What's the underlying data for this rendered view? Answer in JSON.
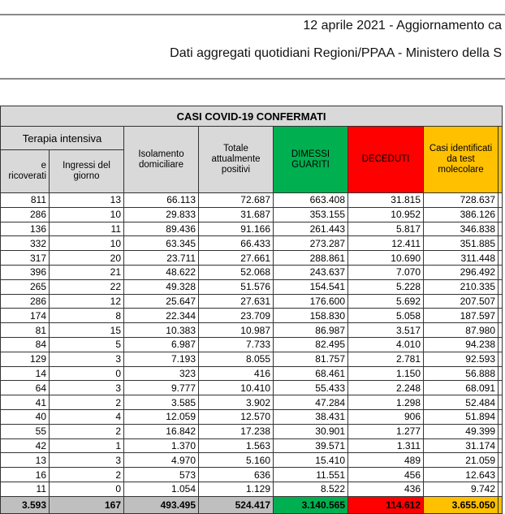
{
  "header": {
    "line1": "12 aprile 2021 - Aggiornamento ca",
    "line2": "Dati aggregati quotidiani Regioni/PPAA - Ministero della S"
  },
  "table": {
    "group_title": "CASI COVID-19 CONFERMATI",
    "sub_group": "Terapia intensiva",
    "columns": [
      "e ricoverati",
      "Ingressi del giorno",
      "Isolamento domiciliare",
      "Totale attualmente positivi",
      "DIMESSI GUARITI",
      "DECEDUTI",
      "Casi identificati da test molecolare"
    ],
    "rows": [
      [
        "811",
        "13",
        "66.113",
        "72.687",
        "663.408",
        "31.815",
        "728.637"
      ],
      [
        "286",
        "10",
        "29.833",
        "31.687",
        "353.155",
        "10.952",
        "386.126"
      ],
      [
        "136",
        "11",
        "89.436",
        "91.166",
        "261.443",
        "5.817",
        "346.838"
      ],
      [
        "332",
        "10",
        "63.345",
        "66.433",
        "273.287",
        "12.411",
        "351.885"
      ],
      [
        "317",
        "20",
        "23.711",
        "27.661",
        "288.861",
        "10.690",
        "311.448"
      ],
      [
        "396",
        "21",
        "48.622",
        "52.068",
        "243.637",
        "7.070",
        "296.492"
      ],
      [
        "265",
        "22",
        "49.328",
        "51.576",
        "154.541",
        "5.228",
        "210.335"
      ],
      [
        "286",
        "12",
        "25.647",
        "27.631",
        "176.600",
        "5.692",
        "207.507"
      ],
      [
        "174",
        "8",
        "22.344",
        "23.709",
        "158.830",
        "5.058",
        "187.597"
      ],
      [
        "81",
        "15",
        "10.383",
        "10.987",
        "86.987",
        "3.517",
        "87.980"
      ],
      [
        "84",
        "5",
        "6.987",
        "7.733",
        "82.495",
        "4.010",
        "94.238"
      ],
      [
        "129",
        "3",
        "7.193",
        "8.055",
        "81.757",
        "2.781",
        "92.593"
      ],
      [
        "14",
        "0",
        "323",
        "416",
        "68.461",
        "1.150",
        "56.888"
      ],
      [
        "64",
        "3",
        "9.777",
        "10.410",
        "55.433",
        "2.248",
        "68.091"
      ],
      [
        "41",
        "2",
        "3.585",
        "3.902",
        "47.284",
        "1.298",
        "52.484"
      ],
      [
        "40",
        "4",
        "12.059",
        "12.570",
        "38.431",
        "906",
        "51.894"
      ],
      [
        "55",
        "2",
        "16.842",
        "17.238",
        "30.901",
        "1.277",
        "49.399"
      ],
      [
        "42",
        "1",
        "1.370",
        "1.563",
        "39.571",
        "1.311",
        "31.174"
      ],
      [
        "13",
        "3",
        "4.970",
        "5.160",
        "15.410",
        "489",
        "21.059"
      ],
      [
        "16",
        "2",
        "573",
        "636",
        "11.551",
        "456",
        "12.643"
      ],
      [
        "11",
        "0",
        "1.054",
        "1.129",
        "8.522",
        "436",
        "9.742"
      ]
    ],
    "totals": [
      "3.593",
      "167",
      "493.495",
      "524.417",
      "3.140.565",
      "114.612",
      "3.655.050"
    ]
  },
  "colors": {
    "guariti": "#00b050",
    "deceduti": "#ff0000",
    "molecolare": "#ffc000",
    "header": "#d9d9d9",
    "totals": "#bfbfbf"
  }
}
